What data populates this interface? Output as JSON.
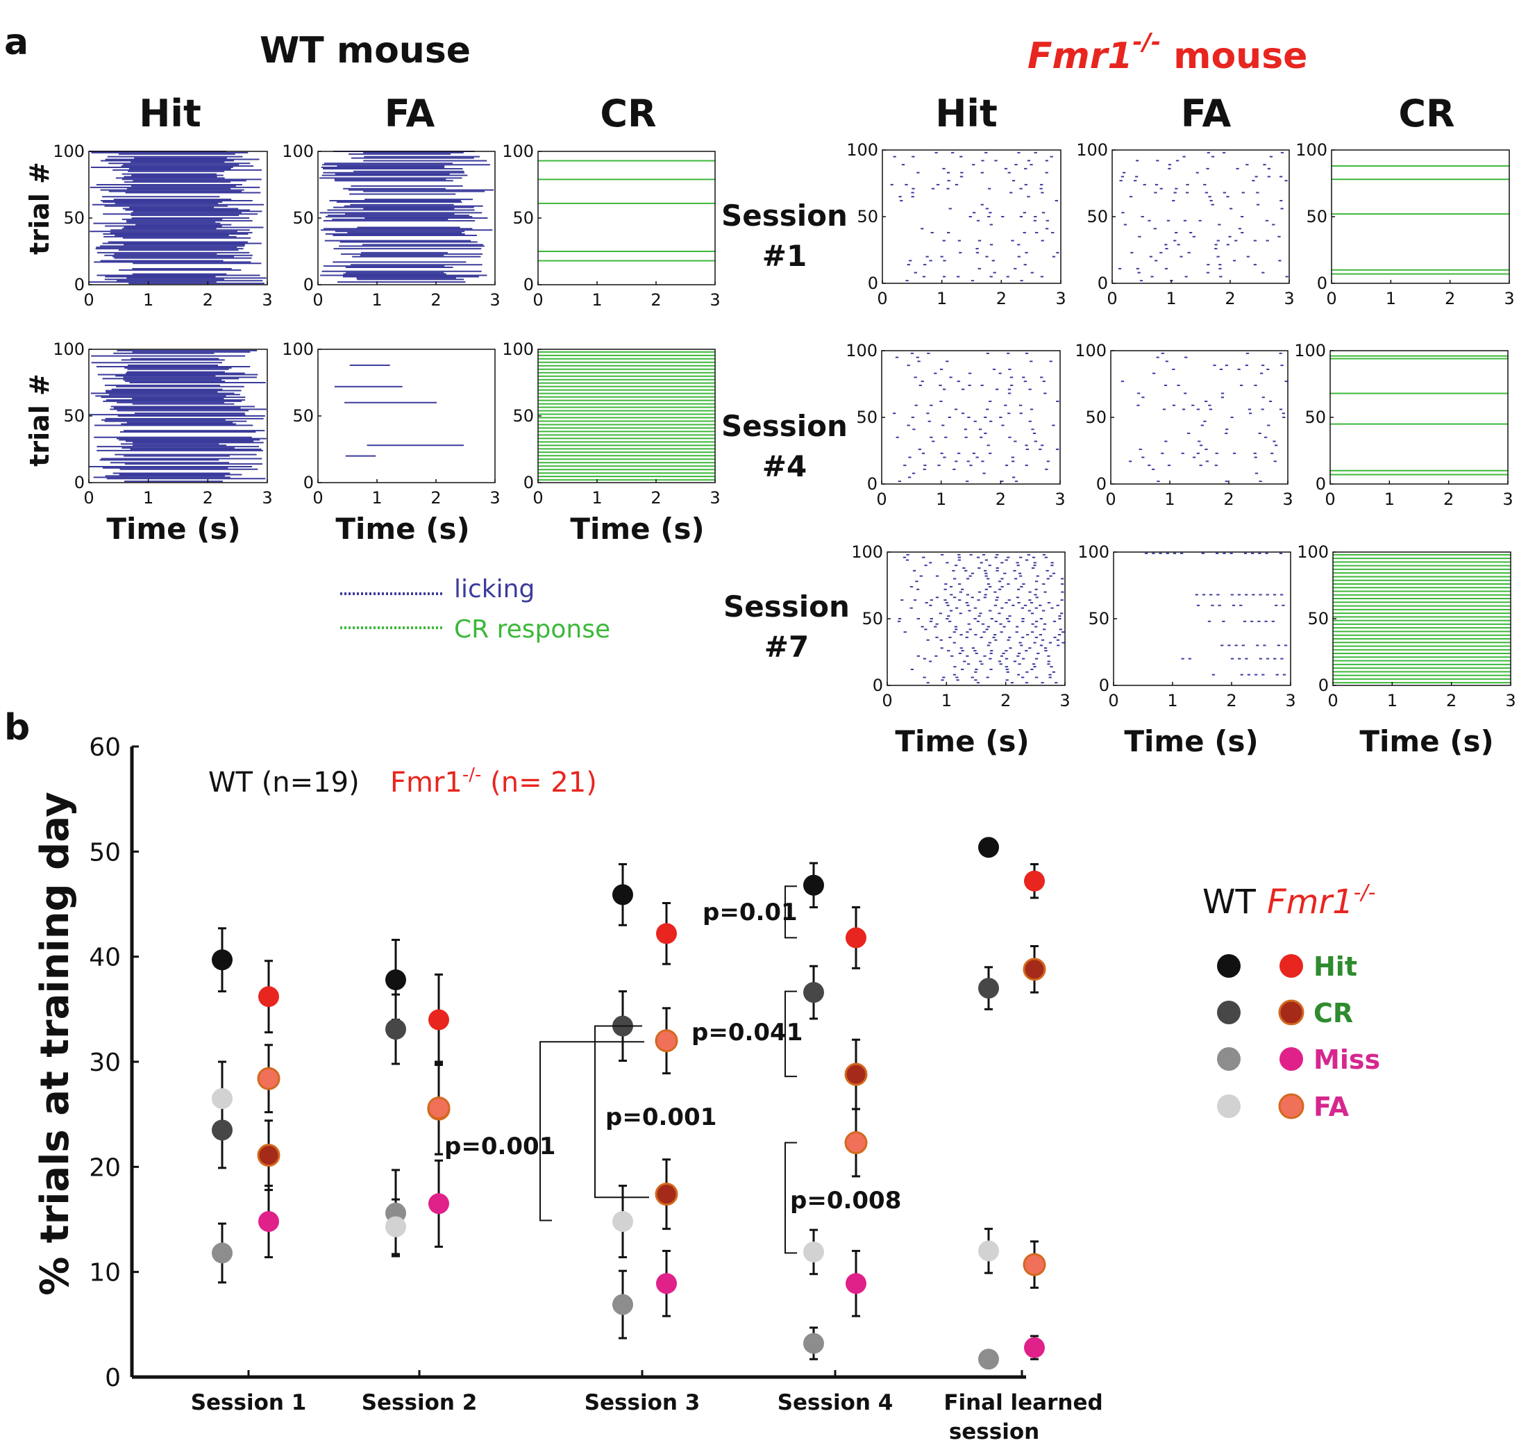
{
  "panel_a": {
    "label": "a",
    "wt_title": "WT mouse",
    "ko_title_gene": "Fmr1",
    "ko_title_sup": "-/-",
    "ko_title_rest": " mouse",
    "columns": [
      "Hit",
      "FA",
      "CR"
    ],
    "y_axis_label": "trial #",
    "x_axis_label": "Time (s)",
    "x_ticks": [
      "0",
      "1",
      "2",
      "3"
    ],
    "y_ticks": [
      "0",
      "50",
      "100"
    ],
    "sessions": [
      {
        "line1": "Session",
        "line2": "#1"
      },
      {
        "line1": "Session",
        "line2": "#4"
      },
      {
        "line1": "Session",
        "line2": "#7"
      }
    ],
    "legend": {
      "licking": "licking",
      "cr": "CR response"
    }
  },
  "colors": {
    "lick": "#3b3b9c",
    "cr": "#3cb83a",
    "hit_ko": "#e8251f",
    "cr_ko": "#a52a1a",
    "cr_ko_edge": "#d2691e",
    "miss_ko": "#e0218a",
    "fa_ko": "#f0705a",
    "hit_wt": "#111111",
    "cr_wt": "#474747",
    "miss_wt": "#8d8d8d",
    "fa_wt": "#d2d2d2",
    "legend_hit": "#2e8b2e",
    "legend_cr": "#2e8b2e",
    "legend_miss": "#d6278f",
    "legend_fa": "#d6278f",
    "red": "#e8251f"
  },
  "chart_data": {
    "type": "scatter",
    "title": "",
    "panel_label": "b",
    "ylabel": "% trials at training day",
    "xlabel": "",
    "ylim": [
      0,
      60
    ],
    "yticks": [
      "0",
      "10",
      "20",
      "30",
      "40",
      "50",
      "60"
    ],
    "categories": [
      "Session 1",
      "Session 2",
      "Session 3",
      "Session 4",
      "Final learned session"
    ],
    "category_lines": [
      [
        "Session 1"
      ],
      [
        "Session 2"
      ],
      [
        "Session 3"
      ],
      [
        "Session 4"
      ],
      [
        "Final learned",
        "session"
      ]
    ],
    "group_labels": {
      "wt": "WT (n=19)",
      "ko_gene": "Fmr1",
      "ko_sup": "-/-",
      "ko_rest": " (n= 21)"
    },
    "legend_header": {
      "wt": "WT",
      "ko_gene": "Fmr1",
      "ko_sup": "-/-"
    },
    "legend_entries": [
      "Hit",
      "CR",
      "Miss",
      "FA"
    ],
    "series": [
      {
        "name": "WT Hit",
        "group": "wt",
        "measure": "Hit",
        "values": [
          39.7,
          37.8,
          45.9,
          46.8,
          50.4
        ],
        "err": [
          3.0,
          3.8,
          2.9,
          2.1,
          0.3
        ]
      },
      {
        "name": "WT CR",
        "group": "wt",
        "measure": "CR",
        "values": [
          23.5,
          33.1,
          33.4,
          36.6,
          37.0
        ],
        "err": [
          3.6,
          3.3,
          3.3,
          2.5,
          2.0
        ]
      },
      {
        "name": "WT Miss",
        "group": "wt",
        "measure": "Miss",
        "values": [
          11.8,
          15.6,
          6.9,
          3.2,
          1.7
        ],
        "err": [
          2.8,
          4.1,
          3.2,
          1.5,
          0.6
        ]
      },
      {
        "name": "WT FA",
        "group": "wt",
        "measure": "FA",
        "values": [
          26.5,
          14.3,
          14.8,
          11.9,
          12.0
        ],
        "err": [
          3.5,
          2.6,
          3.4,
          2.1,
          2.1
        ]
      },
      {
        "name": "Fmr1-/- Hit",
        "group": "ko",
        "measure": "Hit",
        "values": [
          36.2,
          34.0,
          42.2,
          41.8,
          47.2
        ],
        "err": [
          3.4,
          4.3,
          2.9,
          2.9,
          1.6
        ]
      },
      {
        "name": "Fmr1-/- CR",
        "group": "ko",
        "measure": "CR",
        "values": [
          21.1,
          25.5,
          17.4,
          28.8,
          38.8
        ],
        "err": [
          3.3,
          4.3,
          3.3,
          3.3,
          2.2
        ]
      },
      {
        "name": "Fmr1-/- Miss",
        "group": "ko",
        "measure": "Miss",
        "values": [
          14.8,
          16.5,
          8.9,
          8.9,
          2.8
        ],
        "err": [
          3.4,
          4.1,
          3.1,
          3.1,
          1.1
        ]
      },
      {
        "name": "Fmr1-/- FA",
        "group": "ko",
        "measure": "FA",
        "values": [
          28.4,
          25.6,
          32.0,
          22.3,
          10.7
        ],
        "err": [
          3.2,
          4.4,
          3.1,
          3.2,
          2.2
        ]
      }
    ],
    "annotations": [
      "p=0.001",
      "p=0.001",
      "p=0.01",
      "p=0.041",
      "p=0.008"
    ]
  }
}
